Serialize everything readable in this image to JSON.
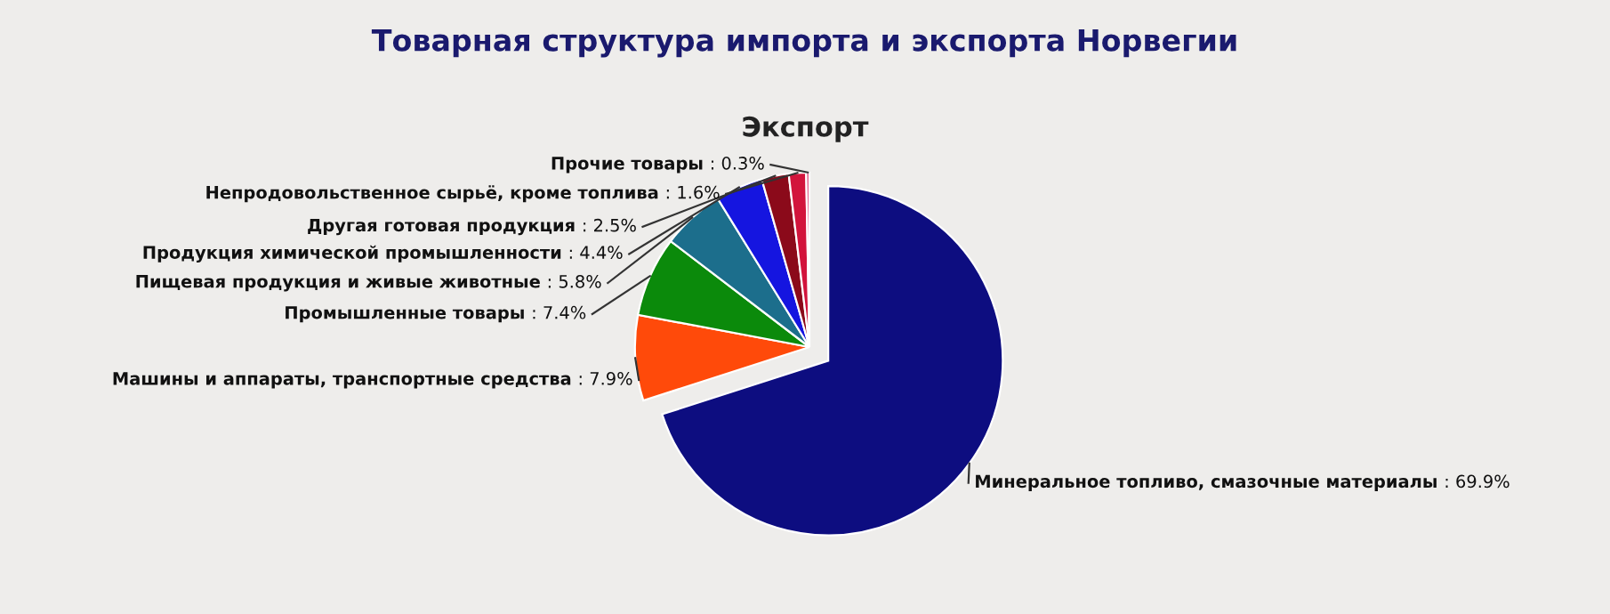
{
  "chart_data": {
    "type": "pie",
    "title": "Товарная структура импорта и экспорта Норвегии",
    "subtitle": "Экспорт",
    "categories": [
      "Минеральное топливо, смазочные материалы",
      "Машины и аппараты, транспортные средства",
      "Промышленные товары",
      "Пищевая продукция и живые животные",
      "Продукция химической промышленности",
      "Другая готовая продукция",
      "Непродовольственное сырьё, кроме топлива",
      "Прочие товары"
    ],
    "values": [
      69.9,
      7.9,
      7.4,
      5.8,
      4.4,
      2.5,
      1.6,
      0.3
    ],
    "colors": [
      "#0d0d80",
      "#ff4a0a",
      "#0b8a0b",
      "#1c6e8c",
      "#1515e0",
      "#8b0a1a",
      "#d2143c",
      "#e05080"
    ],
    "value_labels": [
      ": 69.9%",
      ": 7.9%",
      ": 7.4%",
      ": 5.8%",
      ": 4.4%",
      ": 2.5%",
      ": 1.6%",
      ": 0.3%"
    ]
  }
}
